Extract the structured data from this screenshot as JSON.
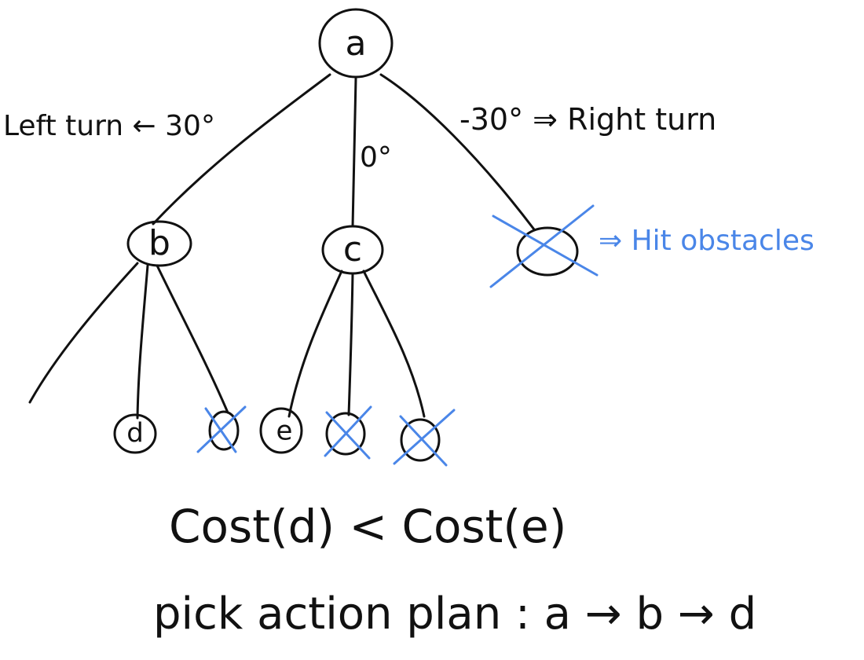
{
  "colors": {
    "ink": "#111111",
    "pruned": "#4a86e8",
    "selected": "#5cc05c"
  },
  "nodes": {
    "a": "a",
    "b": "b",
    "c": "c",
    "d": "d",
    "e": "e"
  },
  "edge_labels": {
    "left": "Left turn ← 30°",
    "straight": "0°",
    "right": "-30° ⇒ Right turn"
  },
  "annotation": {
    "hit_obstacles": "⇒ Hit obstacles"
  },
  "conclusion": {
    "cost_compare": "Cost(d) < Cost(e)",
    "plan": "pick action plan : a → b → d"
  }
}
